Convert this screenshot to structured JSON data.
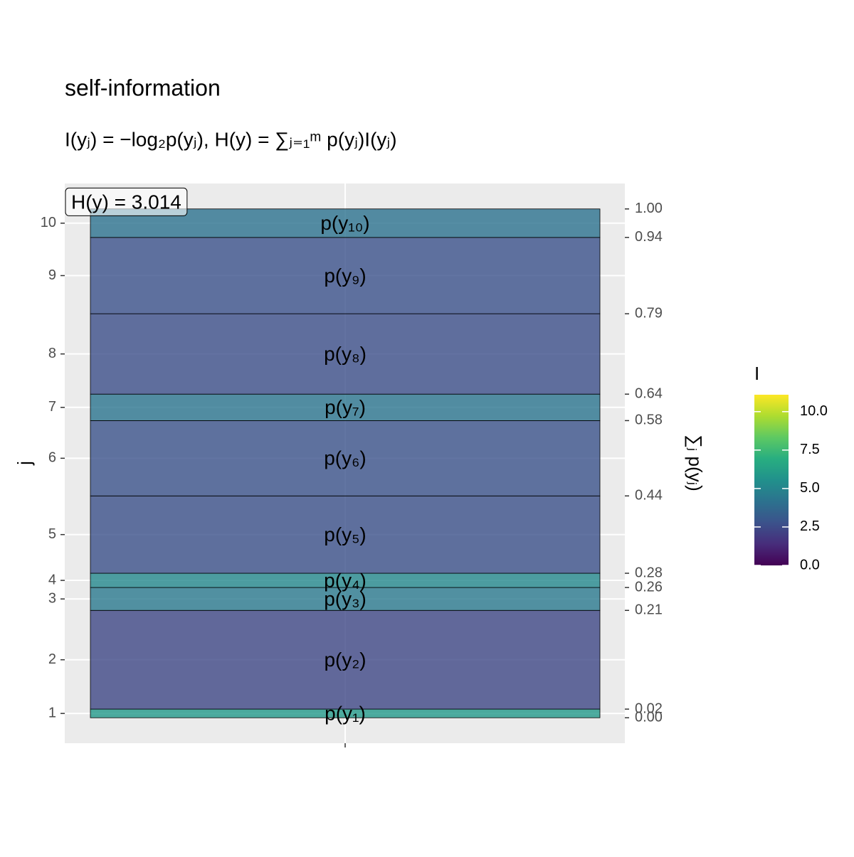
{
  "chart_data": {
    "type": "stacked_bar",
    "title": "self-information",
    "subtitle": "I(yⱼ) = −log₂p(yⱼ), H(y) = ∑ⱼ₌₁ᵐ p(yⱼ)I(yⱼ)",
    "annotation": "H(y) = 3.014",
    "ylabel": "j",
    "y2label": "∑ⱼ p(yⱼ)",
    "categories": [
      "1",
      "2",
      "3",
      "4",
      "5",
      "6",
      "7",
      "8",
      "9",
      "10"
    ],
    "value_labels": [
      "p(y₁)",
      "p(y₂)",
      "p(y₃)",
      "p(y₄)",
      "p(y₅)",
      "p(y₆)",
      "p(y₇)",
      "p(y₈)",
      "p(y₉)",
      "p(y₁₀)"
    ],
    "values": [
      0.017,
      0.194,
      0.045,
      0.028,
      0.152,
      0.148,
      0.052,
      0.158,
      0.15,
      0.056
    ],
    "ylim": [
      -0.05,
      1.05
    ],
    "y2ticks": [
      {
        "value": 0,
        "label": "0.00"
      },
      {
        "value": 0.017,
        "label": "0.02"
      },
      {
        "value": 0.211,
        "label": "0.21"
      },
      {
        "value": 0.256,
        "label": "0.26"
      },
      {
        "value": 0.284,
        "label": "0.28"
      },
      {
        "value": 0.436,
        "label": "0.44"
      },
      {
        "value": 0.584,
        "label": "0.58"
      },
      {
        "value": 0.636,
        "label": "0.64"
      },
      {
        "value": 0.794,
        "label": "0.79"
      },
      {
        "value": 0.944,
        "label": "0.94"
      },
      {
        "value": 1,
        "label": "1.00"
      }
    ],
    "legend_title": "I",
    "colormap": "viridis",
    "color_lim": [
      0,
      11.1
    ],
    "color_ticks": [
      {
        "value": 0,
        "label": "0.0"
      },
      2.5,
      {
        "value": 5,
        "label": "5.0"
      },
      7.5,
      {
        "value": 10,
        "label": "10.0"
      }
    ],
    "grid": true
  }
}
